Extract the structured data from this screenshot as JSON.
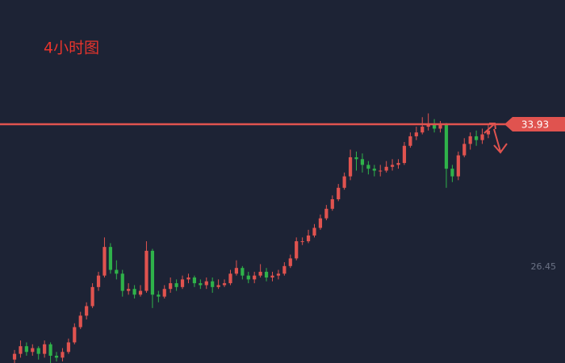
{
  "chart_data": {
    "type": "candlestick",
    "title": "4小时图",
    "up_color": "#e0534f",
    "down_color": "#2fb24a",
    "ylim": [
      21.42,
      40.44
    ],
    "yticks": [
      26.45
    ],
    "grid": false,
    "price_line": {
      "value": 33.93,
      "color": "#e0534f"
    },
    "open": [
      21.6,
      21.9,
      22.3,
      22.0,
      22.2,
      21.9,
      22.4,
      21.8,
      21.7,
      22.0,
      22.5,
      23.3,
      23.9,
      24.4,
      25.4,
      26.0,
      27.5,
      26.3,
      26.1,
      25.2,
      25.3,
      25.0,
      25.2,
      27.3,
      25.0,
      24.9,
      25.3,
      25.6,
      25.4,
      25.8,
      25.9,
      25.6,
      25.5,
      25.7,
      25.4,
      25.5,
      25.6,
      26.1,
      26.4,
      26.0,
      25.8,
      26.0,
      26.2,
      25.9,
      26.0,
      26.1,
      26.5,
      26.9,
      27.8,
      27.8,
      28.1,
      28.5,
      29.0,
      29.5,
      30.0,
      30.6,
      31.2,
      32.2,
      32.1,
      31.8,
      31.6,
      31.5,
      31.5,
      31.7,
      31.8,
      31.9,
      32.8,
      33.3,
      33.5,
      33.8,
      33.9,
      33.7,
      33.9,
      31.6,
      31.2,
      32.3,
      32.9,
      33.3,
      33.1,
      33.4
    ],
    "close": [
      21.9,
      22.3,
      22.0,
      22.2,
      21.9,
      22.4,
      21.8,
      21.7,
      22.0,
      22.5,
      23.3,
      23.9,
      24.4,
      25.4,
      26.0,
      27.5,
      26.3,
      26.1,
      25.2,
      25.3,
      25.0,
      25.2,
      27.3,
      25.0,
      24.9,
      25.3,
      25.6,
      25.4,
      25.8,
      25.9,
      25.6,
      25.5,
      25.7,
      25.4,
      25.5,
      25.6,
      26.1,
      26.4,
      26.0,
      25.8,
      26.0,
      26.2,
      25.9,
      26.0,
      26.1,
      26.5,
      26.9,
      27.8,
      27.8,
      28.1,
      28.5,
      29.0,
      29.5,
      30.0,
      30.6,
      31.2,
      32.2,
      32.1,
      31.8,
      31.6,
      31.5,
      31.5,
      31.7,
      31.8,
      31.9,
      32.8,
      33.3,
      33.5,
      33.8,
      33.9,
      33.7,
      33.9,
      31.6,
      31.2,
      32.3,
      32.9,
      33.3,
      33.1,
      33.4,
      33.6
    ],
    "high": [
      22.1,
      22.6,
      22.5,
      22.4,
      22.3,
      22.6,
      22.5,
      22.0,
      22.2,
      22.7,
      23.5,
      24.1,
      24.6,
      25.6,
      26.2,
      28.0,
      27.7,
      26.8,
      26.3,
      25.6,
      25.5,
      25.5,
      27.8,
      27.4,
      25.2,
      25.5,
      25.9,
      25.8,
      26.0,
      26.1,
      26.0,
      25.8,
      25.9,
      25.9,
      25.8,
      25.8,
      26.3,
      26.8,
      26.5,
      26.2,
      26.2,
      26.6,
      26.4,
      26.2,
      26.3,
      26.7,
      27.1,
      28.0,
      28.0,
      28.4,
      28.7,
      29.2,
      29.7,
      30.2,
      30.8,
      31.4,
      32.6,
      32.5,
      32.4,
      32.0,
      31.8,
      31.8,
      32.0,
      32.1,
      32.1,
      33.0,
      33.5,
      33.8,
      34.3,
      34.5,
      34.2,
      34.1,
      34.0,
      31.8,
      32.5,
      33.2,
      33.5,
      33.6,
      33.7,
      33.9
    ],
    "low": [
      21.4,
      21.7,
      21.8,
      21.8,
      21.6,
      21.7,
      21.4,
      21.5,
      21.5,
      21.9,
      22.4,
      23.2,
      23.7,
      24.3,
      25.2,
      25.9,
      26.1,
      25.8,
      24.9,
      25.0,
      24.8,
      24.9,
      25.1,
      24.3,
      24.6,
      24.8,
      25.1,
      25.2,
      25.3,
      25.6,
      25.4,
      25.3,
      25.3,
      25.1,
      25.3,
      25.4,
      25.5,
      26.0,
      25.8,
      25.6,
      25.6,
      25.9,
      25.7,
      25.7,
      25.8,
      26.0,
      26.4,
      26.8,
      27.6,
      27.7,
      28.0,
      28.4,
      28.9,
      29.4,
      29.9,
      30.5,
      31.0,
      31.5,
      31.4,
      31.3,
      31.2,
      31.2,
      31.4,
      31.5,
      31.6,
      31.8,
      32.7,
      33.1,
      33.4,
      33.6,
      33.5,
      33.5,
      30.6,
      30.9,
      31.0,
      32.2,
      32.6,
      32.8,
      32.9,
      33.2
    ]
  }
}
